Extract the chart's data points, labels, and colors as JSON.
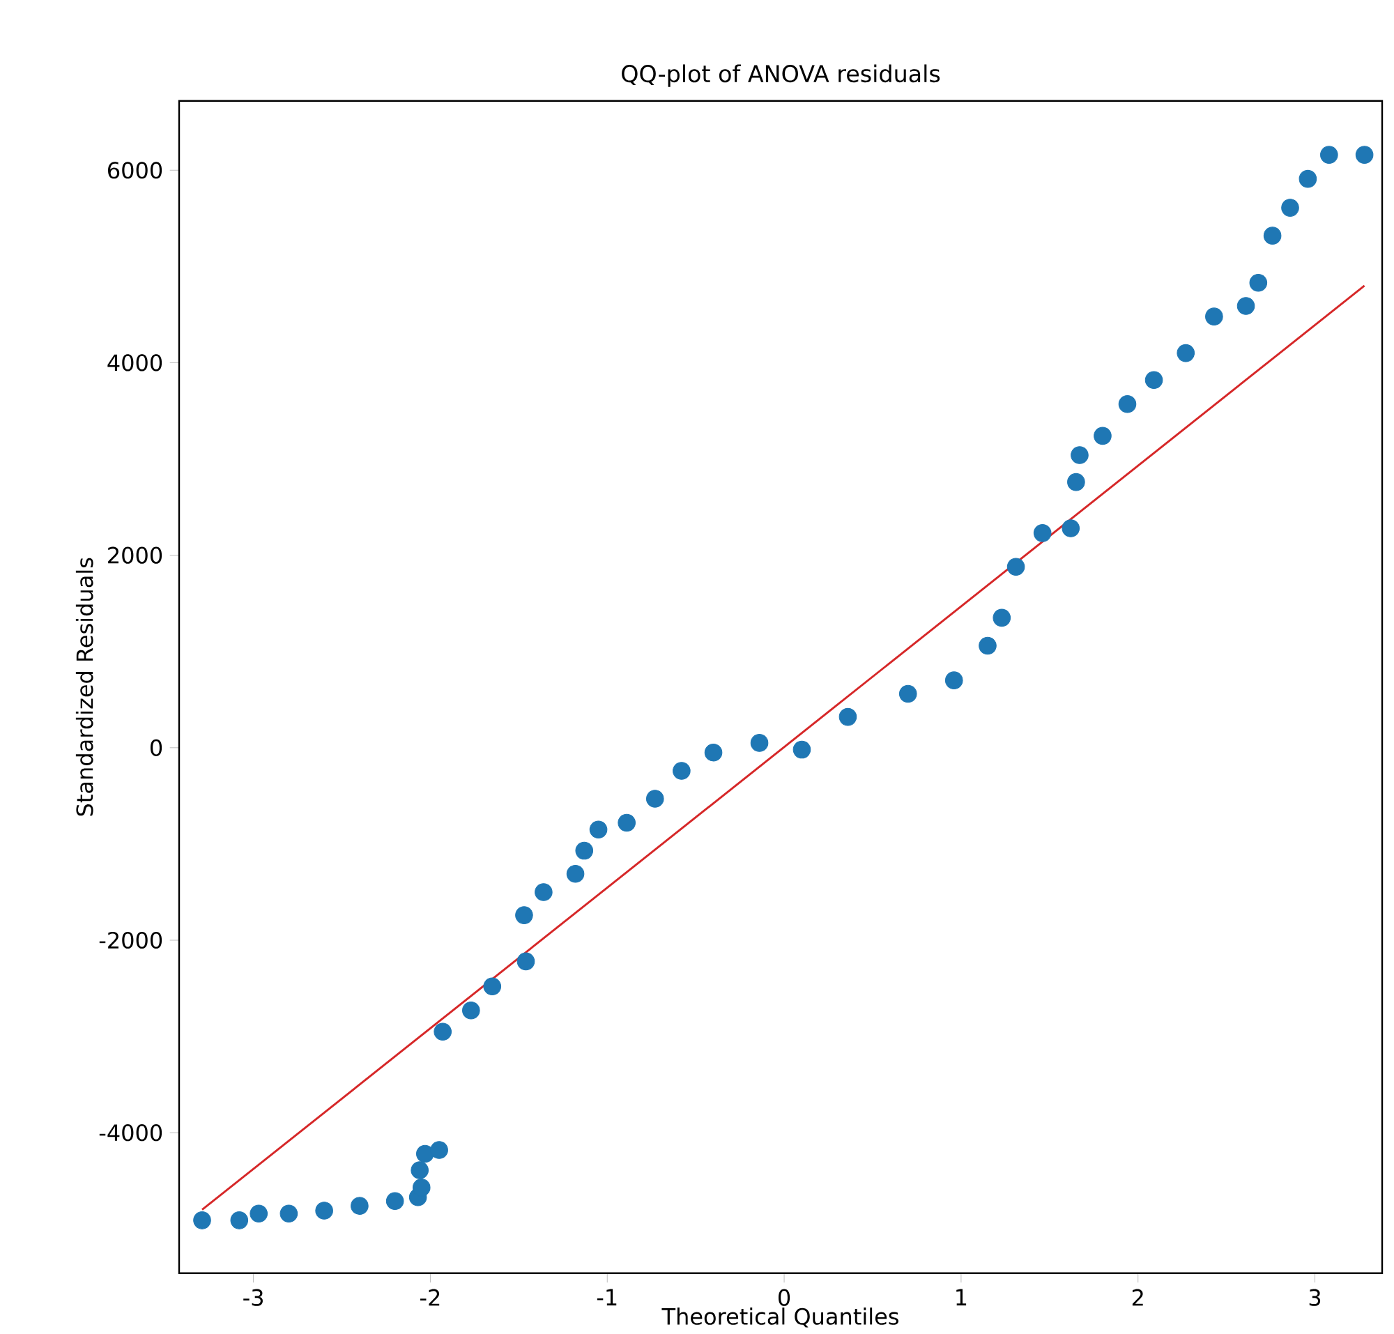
{
  "chart_data": {
    "type": "scatter",
    "title": "QQ-plot of ANOVA residuals",
    "xlabel": "Theoretical Quantiles",
    "ylabel": "Standardized Residuals",
    "xlim": [
      -3.42,
      3.38
    ],
    "ylim": [
      -5460,
      6720
    ],
    "xticks": [
      -3,
      -2,
      -1,
      0,
      1,
      2,
      3
    ],
    "yticks": [
      -4000,
      -2000,
      0,
      2000,
      4000,
      6000
    ],
    "series": [
      {
        "marker": "circle",
        "color": "#1f77b4",
        "x": [
          -3.29,
          -3.08,
          -2.97,
          -2.8,
          -2.6,
          -2.4,
          -2.2,
          -2.07,
          -2.05,
          -2.06,
          -2.03,
          -1.95,
          -1.93,
          -1.77,
          -1.65,
          -1.46,
          -1.47,
          -1.36,
          -1.18,
          -1.13,
          -1.05,
          -0.89,
          -0.73,
          -0.58,
          -0.4,
          -0.14,
          0.1,
          0.36,
          0.7,
          0.96,
          1.15,
          1.23,
          1.31,
          1.46,
          1.62,
          1.65,
          1.67,
          1.8,
          1.94,
          2.09,
          2.27,
          2.43,
          2.61,
          2.68,
          2.76,
          2.86,
          2.96,
          3.08,
          3.28
        ],
        "values": [
          -4910,
          -4910,
          -4840,
          -4840,
          -4810,
          -4760,
          -4710,
          -4670,
          -4570,
          -4390,
          -4220,
          -4180,
          -2950,
          -2730,
          -2480,
          -2220,
          -1740,
          -1500,
          -1310,
          -1070,
          -850,
          -780,
          -530,
          -240,
          -50,
          50,
          -20,
          320,
          560,
          700,
          1060,
          1350,
          1880,
          2230,
          2280,
          2760,
          3040,
          3240,
          3570,
          3820,
          4100,
          4480,
          4590,
          4830,
          5320,
          5610,
          5910,
          6160,
          6160
        ]
      },
      {
        "type": "line",
        "color": "#d62728",
        "x": [
          -3.29,
          3.28
        ],
        "values": [
          -4800,
          4800
        ]
      }
    ]
  }
}
